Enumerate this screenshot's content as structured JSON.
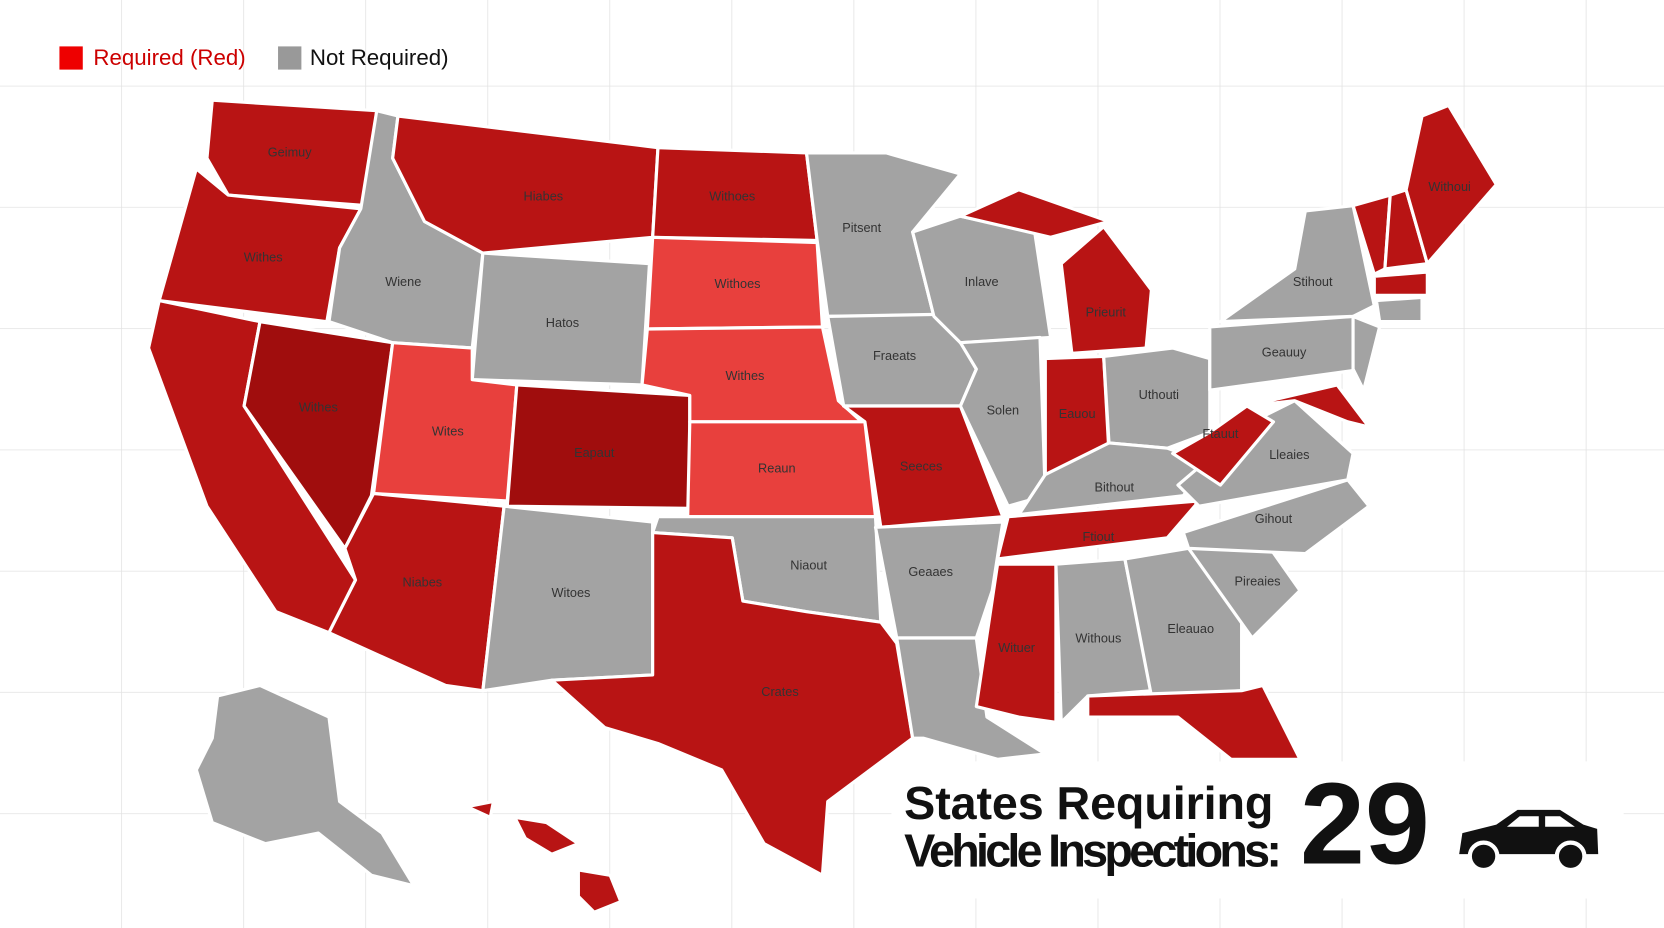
{
  "legend": {
    "items": [
      "Required (Red)",
      "Not Required)"
    ]
  },
  "map": {
    "labels": [
      "Geimuy",
      "Withes",
      "Withes",
      "Wiene",
      "Hiabes",
      "Hatos",
      "Wites",
      "Eapaut",
      "Niabes",
      "Witoes",
      "Withoes",
      "Withoes",
      "Withes",
      "Reaun",
      "Niaout",
      "Crates",
      "Pitsent",
      "Fraeats",
      "Seeces",
      "Geaaes",
      "Inlave",
      "Solen",
      "Prieurit",
      "Eauou",
      "Uthouti",
      "Bithout",
      "Ftiout",
      "Wituer",
      "Withous",
      "Eleauao",
      "Pireaies",
      "Gihout",
      "Lleaies",
      "Ftauut",
      "Geauuy",
      "Stihout",
      "Withoui"
    ]
  },
  "headline": {
    "lines": [
      "States Requiring",
      "Vehicle Inspections:"
    ],
    "count": 29
  }
}
